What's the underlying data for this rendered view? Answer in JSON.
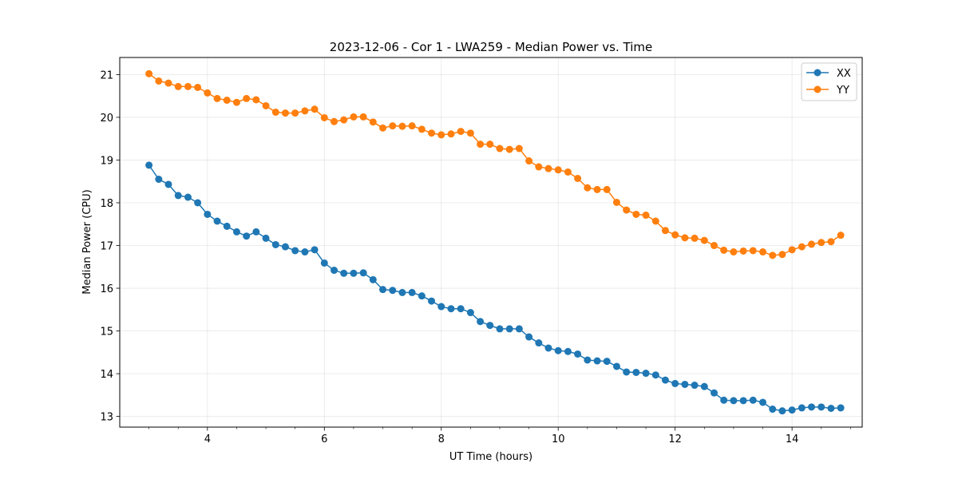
{
  "chart_data": {
    "type": "line",
    "title": "2023-12-06 - Cor 1 - LWA259 - Median Power vs. Time",
    "xlabel": "UT Time (hours)",
    "ylabel": "Median Power (CPU)",
    "xlim": [
      2.5,
      15.2
    ],
    "ylim": [
      12.75,
      21.4
    ],
    "xticks": [
      4,
      6,
      8,
      10,
      12,
      14
    ],
    "xtick_labels": [
      "4",
      "6",
      "8",
      "10",
      "12",
      "14"
    ],
    "yticks": [
      13,
      14,
      15,
      16,
      17,
      18,
      19,
      20,
      21
    ],
    "ytick_labels": [
      "13",
      "14",
      "15",
      "16",
      "17",
      "18",
      "19",
      "20",
      "21"
    ],
    "grid": true,
    "legend_position": "top-right",
    "x": [
      3.0,
      3.167,
      3.333,
      3.5,
      3.667,
      3.833,
      4.0,
      4.167,
      4.333,
      4.5,
      4.667,
      4.833,
      5.0,
      5.167,
      5.333,
      5.5,
      5.667,
      5.833,
      6.0,
      6.167,
      6.333,
      6.5,
      6.667,
      6.833,
      7.0,
      7.167,
      7.333,
      7.5,
      7.667,
      7.833,
      8.0,
      8.167,
      8.333,
      8.5,
      8.667,
      8.833,
      9.0,
      9.167,
      9.333,
      9.5,
      9.667,
      9.833,
      10.0,
      10.167,
      10.333,
      10.5,
      10.667,
      10.833,
      11.0,
      11.167,
      11.333,
      11.5,
      11.667,
      11.833,
      12.0,
      12.167,
      12.333,
      12.5,
      12.667,
      12.833,
      13.0,
      13.167,
      13.333,
      13.5,
      13.667,
      13.833,
      14.0,
      14.167,
      14.333,
      14.5,
      14.667,
      14.833
    ],
    "series": [
      {
        "name": "XX",
        "color": "#1f77b4",
        "values": [
          18.88,
          18.55,
          18.43,
          18.17,
          18.13,
          18.0,
          17.73,
          17.57,
          17.45,
          17.32,
          17.22,
          17.32,
          17.17,
          17.02,
          16.97,
          16.88,
          16.85,
          16.9,
          16.59,
          16.42,
          16.35,
          16.35,
          16.36,
          16.2,
          15.97,
          15.95,
          15.9,
          15.9,
          15.82,
          15.7,
          15.57,
          15.52,
          15.52,
          15.43,
          15.22,
          15.13,
          15.05,
          15.05,
          15.05,
          14.86,
          14.72,
          14.6,
          14.54,
          14.52,
          14.46,
          14.32,
          14.3,
          14.29,
          14.17,
          14.04,
          14.03,
          14.01,
          13.97,
          13.85,
          13.77,
          13.75,
          13.73,
          13.7,
          13.55,
          13.38,
          13.37,
          13.37,
          13.38,
          13.33,
          13.17,
          13.13,
          13.15,
          13.2,
          13.22,
          13.22,
          13.19,
          13.2
        ]
      },
      {
        "name": "YY",
        "color": "#ff7f0e",
        "values": [
          21.02,
          20.85,
          20.8,
          20.72,
          20.72,
          20.7,
          20.57,
          20.44,
          20.4,
          20.35,
          20.44,
          20.41,
          20.27,
          20.12,
          20.1,
          20.1,
          20.15,
          20.19,
          19.99,
          19.9,
          19.94,
          20.01,
          20.01,
          19.89,
          19.75,
          19.8,
          19.79,
          19.8,
          19.72,
          19.63,
          19.59,
          19.61,
          19.67,
          19.63,
          19.37,
          19.37,
          19.27,
          19.25,
          19.27,
          18.98,
          18.84,
          18.8,
          18.77,
          18.72,
          18.57,
          18.35,
          18.31,
          18.31,
          18.01,
          17.83,
          17.73,
          17.71,
          17.57,
          17.35,
          17.25,
          17.18,
          17.17,
          17.12,
          17.0,
          16.89,
          16.85,
          16.87,
          16.88,
          16.85,
          16.77,
          16.79,
          16.9,
          16.97,
          17.03,
          17.07,
          17.09,
          17.24
        ]
      }
    ]
  }
}
